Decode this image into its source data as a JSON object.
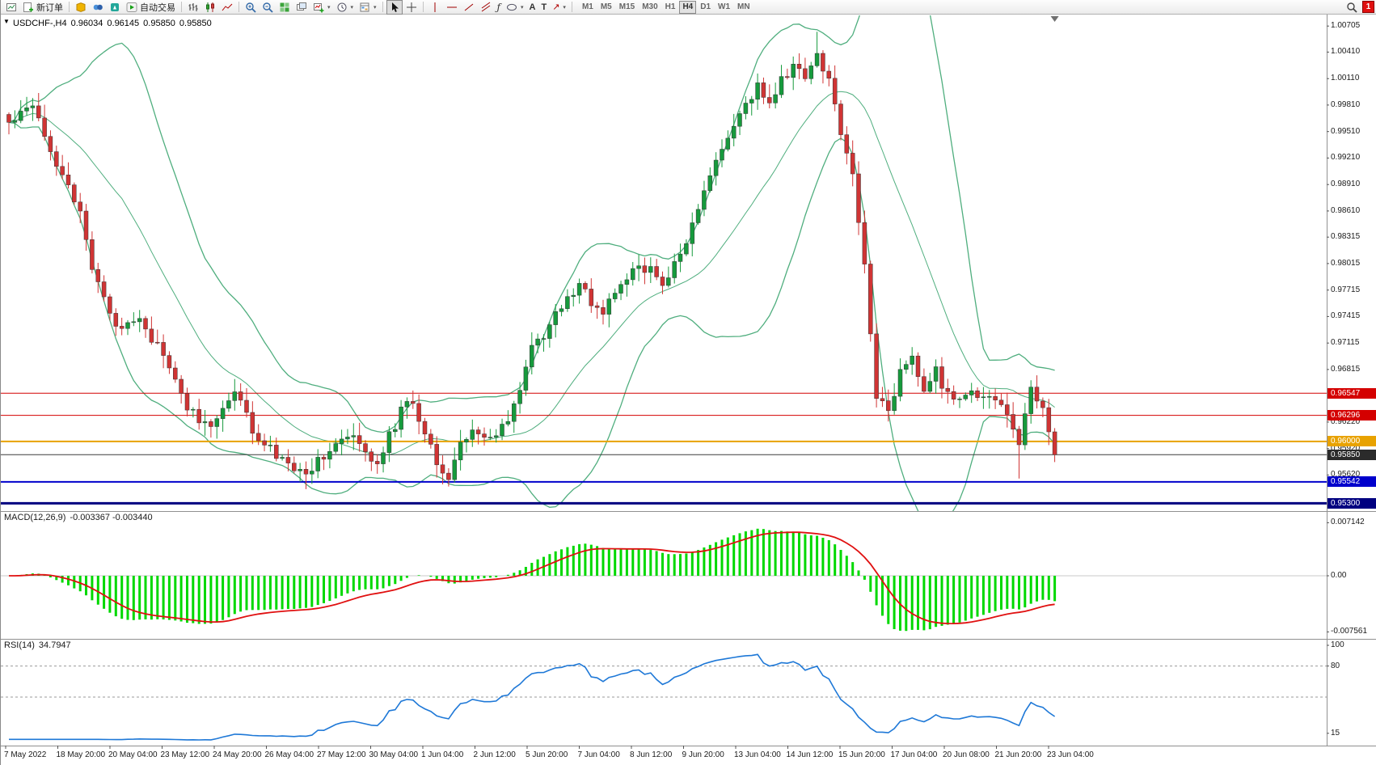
{
  "toolbar": {
    "new_order": "新订单",
    "auto_trading": "自动交易",
    "timeframes": [
      "M1",
      "M5",
      "M15",
      "M30",
      "H1",
      "H4",
      "D1",
      "W1",
      "MN"
    ],
    "active_timeframe": "H4",
    "notification_count": "1"
  },
  "icons": {
    "collapse": "▼",
    "caret": "▾",
    "fibonacci": "ƒ",
    "text_tool": "A",
    "label_tool": "T",
    "arrow_tool": "↗"
  },
  "chart": {
    "header": {
      "symbol": "USDCHF-,H4",
      "open": "0.96034",
      "high": "0.96145",
      "low": "0.95850",
      "close": "0.95850"
    },
    "price_axis": [
      "1.00705",
      "1.00410",
      "1.00110",
      "0.99810",
      "0.99510",
      "0.99210",
      "0.98910",
      "0.98610",
      "0.98315",
      "0.98015",
      "0.97715",
      "0.97415",
      "0.97115",
      "0.96815",
      "0.96220",
      "0.95920",
      "0.95620"
    ],
    "price_tags": [
      {
        "value": "0.96547",
        "price": 0.96547,
        "bg": "#d40000",
        "line": "#d40000",
        "line_width": 1
      },
      {
        "value": "0.96296",
        "price": 0.96296,
        "bg": "#d40000",
        "line": "#d40000",
        "line_width": 1
      },
      {
        "value": "0.96000",
        "price": 0.96,
        "bg": "#e8a200",
        "line": "#e8a200",
        "line_width": 2
      },
      {
        "value": "0.95850",
        "price": 0.9585,
        "bg": "#2b2b2b",
        "line": "#3c3c3c",
        "line_width": 1
      },
      {
        "value": "0.95542",
        "price": 0.95542,
        "bg": "#0000cc",
        "line": "#0000cc",
        "line_width": 2
      },
      {
        "value": "0.95300",
        "price": 0.953,
        "bg": "#000080",
        "line": "#000080",
        "line_width": 3
      }
    ]
  },
  "macd": {
    "label": "MACD(12,26,9)",
    "values": "-0.003367 -0.003440",
    "axis": [
      "0.007142",
      "0.00",
      "-0.007561"
    ]
  },
  "rsi": {
    "label": "RSI(14)",
    "value": "34.7947",
    "axis": [
      "100",
      "80",
      "15"
    ]
  },
  "time_axis": {
    "labels": [
      "7 May 2022",
      "18 May 20:00",
      "20 May 04:00",
      "23 May 12:00",
      "24 May 20:00",
      "26 May 04:00",
      "27 May 12:00",
      "30 May 04:00",
      "1 Jun 04:00",
      "2 Jun 12:00",
      "5 Jun 20:00",
      "7 Jun 04:00",
      "8 Jun 12:00",
      "9 Jun 20:00",
      "13 Jun 04:00",
      "14 Jun 12:00",
      "15 Jun 20:00",
      "17 Jun 04:00",
      "20 Jun 08:00",
      "21 Jun 20:00",
      "23 Jun 04:00"
    ]
  },
  "chart_data": {
    "type": "candlestick",
    "symbol": "USDCHF",
    "timeframe": "H4",
    "visible_price_range": [
      0.9523,
      1.0078
    ],
    "candles": {
      "count": 177,
      "close_keypoints": [
        [
          0,
          0.996
        ],
        [
          2,
          0.9975
        ],
        [
          4,
          0.9985
        ],
        [
          6,
          0.995
        ],
        [
          8,
          0.9915
        ],
        [
          10,
          0.989
        ],
        [
          12,
          0.9855
        ],
        [
          14,
          0.98
        ],
        [
          16,
          0.9765
        ],
        [
          18,
          0.9725
        ],
        [
          20,
          0.9735
        ],
        [
          22,
          0.9745
        ],
        [
          24,
          0.9715
        ],
        [
          26,
          0.97
        ],
        [
          28,
          0.9665
        ],
        [
          30,
          0.964
        ],
        [
          32,
          0.9625
        ],
        [
          34,
          0.9615
        ],
        [
          36,
          0.964
        ],
        [
          38,
          0.9655
        ],
        [
          40,
          0.963
        ],
        [
          42,
          0.96
        ],
        [
          44,
          0.959
        ],
        [
          46,
          0.9577
        ],
        [
          48,
          0.957
        ],
        [
          50,
          0.9562
        ],
        [
          52,
          0.958
        ],
        [
          54,
          0.9592
        ],
        [
          56,
          0.96
        ],
        [
          58,
          0.9603
        ],
        [
          60,
          0.9585
        ],
        [
          62,
          0.9578
        ],
        [
          64,
          0.9605
        ],
        [
          66,
          0.9635
        ],
        [
          68,
          0.9645
        ],
        [
          70,
          0.961
        ],
        [
          72,
          0.958
        ],
        [
          74,
          0.9558
        ],
        [
          76,
          0.9595
        ],
        [
          78,
          0.9618
        ],
        [
          80,
          0.96
        ],
        [
          82,
          0.9605
        ],
        [
          84,
          0.9623
        ],
        [
          86,
          0.9662
        ],
        [
          88,
          0.9705
        ],
        [
          90,
          0.972
        ],
        [
          92,
          0.9742
        ],
        [
          94,
          0.976
        ],
        [
          96,
          0.978
        ],
        [
          98,
          0.9755
        ],
        [
          100,
          0.9748
        ],
        [
          102,
          0.9765
        ],
        [
          104,
          0.9785
        ],
        [
          106,
          0.98
        ],
        [
          108,
          0.9792
        ],
        [
          110,
          0.9778
        ],
        [
          112,
          0.98
        ],
        [
          114,
          0.9825
        ],
        [
          116,
          0.9862
        ],
        [
          118,
          0.99
        ],
        [
          120,
          0.9932
        ],
        [
          122,
          0.9958
        ],
        [
          124,
          0.9978
        ],
        [
          126,
          1.0005
        ],
        [
          128,
          0.9982
        ],
        [
          130,
          1.0008
        ],
        [
          132,
          1.0025
        ],
        [
          134,
          1.0012
        ],
        [
          136,
          1.004
        ],
        [
          138,
          1.0008
        ],
        [
          140,
          0.9952
        ],
        [
          142,
          0.99
        ],
        [
          144,
          0.98
        ],
        [
          146,
          0.9655
        ],
        [
          148,
          0.9632
        ],
        [
          150,
          0.968
        ],
        [
          152,
          0.97
        ],
        [
          154,
          0.9652
        ],
        [
          156,
          0.968
        ],
        [
          158,
          0.9652
        ],
        [
          160,
          0.9642
        ],
        [
          162,
          0.966
        ],
        [
          164,
          0.9645
        ],
        [
          166,
          0.9652
        ],
        [
          168,
          0.9625
        ],
        [
          170,
          0.96
        ],
        [
          172,
          0.966
        ],
        [
          174,
          0.9638
        ],
        [
          176,
          0.9585
        ]
      ],
      "last_close": 0.9585,
      "up_color": "#169a3c",
      "down_color": "#d03434"
    },
    "indicators": {
      "bollinger": {
        "period": 20,
        "deviation": 2,
        "color": "#4fae7e"
      },
      "macd": {
        "fast": 12,
        "slow": 26,
        "signal": 9,
        "histogram_color": "#00d800",
        "signal_color": "#e01010"
      },
      "rsi": {
        "period": 14,
        "color": "#1e78d7",
        "levels": [
          80,
          50
        ]
      }
    }
  }
}
